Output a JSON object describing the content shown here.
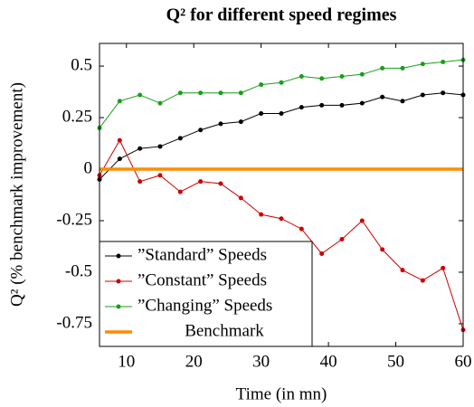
{
  "chart_data": {
    "type": "line",
    "title": "Q² for different speed regimes",
    "xlabel": "Time (in mn)",
    "ylabel": "Q² (% benchmark improvement)",
    "x": [
      6,
      9,
      12,
      15,
      18,
      21,
      24,
      27,
      30,
      33,
      36,
      39,
      42,
      45,
      48,
      51,
      54,
      57,
      60
    ],
    "series": [
      {
        "name": "”Standard” Speeds",
        "color": "#000000",
        "marker": true,
        "values": [
          -0.05,
          0.05,
          0.1,
          0.11,
          0.15,
          0.19,
          0.22,
          0.23,
          0.27,
          0.27,
          0.3,
          0.31,
          0.31,
          0.32,
          0.35,
          0.33,
          0.36,
          0.37,
          0.36
        ]
      },
      {
        "name": "”Constant” Speeds",
        "color": "#cc0000",
        "marker": true,
        "values": [
          -0.03,
          0.14,
          -0.06,
          -0.03,
          -0.11,
          -0.06,
          -0.07,
          -0.14,
          -0.22,
          -0.24,
          -0.29,
          -0.41,
          -0.34,
          -0.25,
          -0.39,
          -0.49,
          -0.54,
          -0.48,
          -0.78
        ]
      },
      {
        "name": "”Changing” Speeds",
        "color": "#1a9e1a",
        "marker": true,
        "values": [
          0.2,
          0.33,
          0.36,
          0.32,
          0.37,
          0.37,
          0.37,
          0.37,
          0.41,
          0.42,
          0.45,
          0.44,
          0.45,
          0.46,
          0.49,
          0.49,
          0.51,
          0.52,
          0.53
        ]
      },
      {
        "name": "Benchmark",
        "color": "#ff8c00",
        "marker": false,
        "values": [
          0,
          0,
          0,
          0,
          0,
          0,
          0,
          0,
          0,
          0,
          0,
          0,
          0,
          0,
          0,
          0,
          0,
          0,
          0
        ]
      }
    ],
    "xlim": [
      6,
      60
    ],
    "xticks": [
      10,
      20,
      30,
      40,
      50,
      60
    ],
    "ylim": [
      -0.86,
      0.61
    ],
    "yticks": [
      0.5,
      0.25,
      0,
      -0.25,
      -0.5,
      -0.75
    ],
    "grid": false,
    "legend": "lower left"
  }
}
